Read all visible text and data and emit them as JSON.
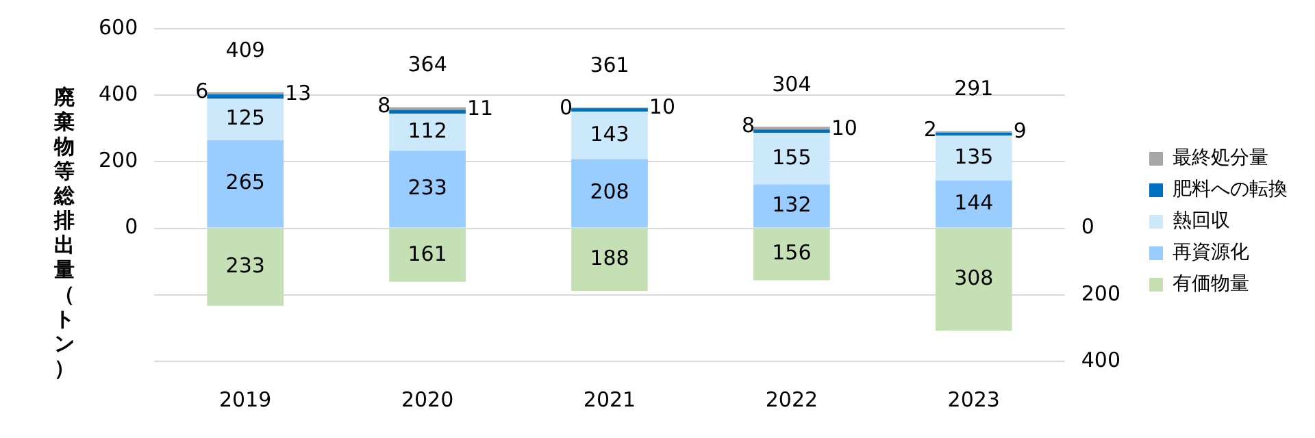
{
  "chart_data": {
    "type": "bar",
    "stacked": true,
    "ylabel": "廃棄物等総排出量（トン）",
    "categories": [
      "2019",
      "2020",
      "2021",
      "2022",
      "2023"
    ],
    "series": [
      {
        "name": "再資源化",
        "color": "#99ccff",
        "values": [
          265,
          233,
          208,
          132,
          144
        ]
      },
      {
        "name": "熱回収",
        "color": "#cce8fb",
        "values": [
          125,
          112,
          143,
          155,
          135
        ]
      },
      {
        "name": "肥料への転換",
        "color": "#0070c0",
        "values": [
          13,
          11,
          10,
          10,
          9
        ]
      },
      {
        "name": "最終処分量",
        "color": "#a6a6a6",
        "values": [
          6,
          8,
          0,
          8,
          2
        ]
      },
      {
        "name": "有価物量",
        "color": "#c5e0b4",
        "values": [
          233,
          161,
          188,
          156,
          308
        ],
        "axis": "y2"
      }
    ],
    "totals": [
      "409",
      "364",
      "361",
      "304",
      "291"
    ],
    "data_labels": true,
    "ylim": [
      -400,
      600
    ],
    "yticks": [
      {
        "value": -400,
        "label": null
      },
      {
        "value": -200,
        "label": null
      },
      0,
      200,
      400,
      600
    ],
    "y2lim": [
      400,
      -600
    ],
    "y2ticks": [
      0,
      200,
      400
    ],
    "grid": "y",
    "legend": "right"
  }
}
